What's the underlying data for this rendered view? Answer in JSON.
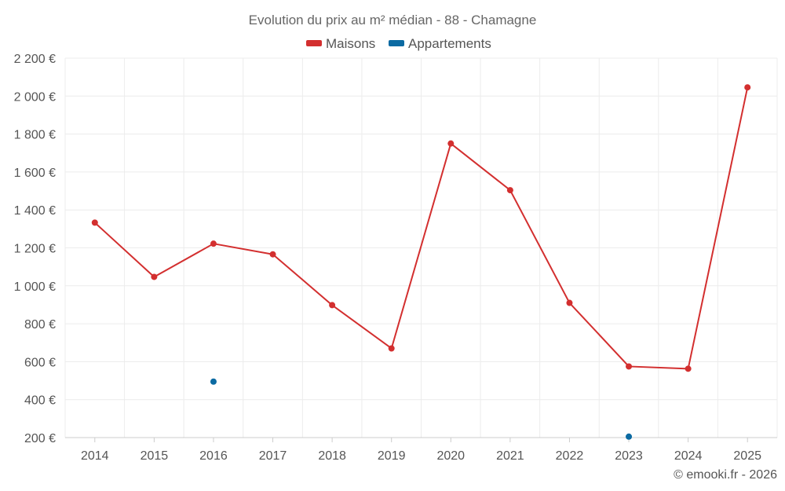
{
  "chart_data": {
    "type": "line",
    "title": "Evolution du prix au m² médian - 88 - Chamagne",
    "credit": "© emooki.fr - 2026",
    "x": [
      "2014",
      "2015",
      "2016",
      "2017",
      "2018",
      "2019",
      "2020",
      "2021",
      "2022",
      "2023",
      "2024",
      "2025"
    ],
    "ylim": [
      200,
      2200
    ],
    "yticks": [
      200,
      400,
      600,
      800,
      1000,
      1200,
      1400,
      1600,
      1800,
      2000,
      2200
    ],
    "ytick_labels": [
      "200 €",
      "400 €",
      "600 €",
      "800 €",
      "1 000 €",
      "1 200 €",
      "1 400 €",
      "1 600 €",
      "1 800 €",
      "2 000 €",
      "2 200 €"
    ],
    "legend_position": "top-center",
    "grid": true,
    "series": [
      {
        "name": "Maisons",
        "color": "#d32f2f",
        "values": [
          1333,
          1047,
          1222,
          1166,
          898,
          670,
          1750,
          1504,
          910,
          575,
          563,
          2046
        ]
      },
      {
        "name": "Appartements",
        "color": "#0b6aa2",
        "values": [
          null,
          null,
          495,
          null,
          null,
          null,
          null,
          null,
          null,
          205,
          null,
          null
        ]
      }
    ]
  }
}
